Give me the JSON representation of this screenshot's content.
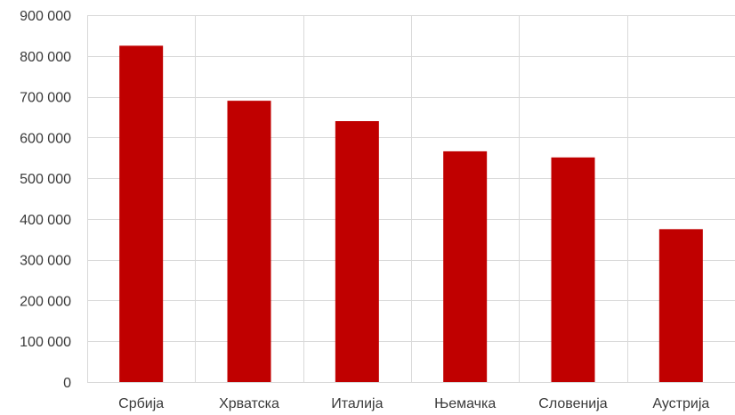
{
  "chart_data": {
    "type": "bar",
    "categories": [
      "Србија",
      "Хрватска",
      "Италија",
      "Њемачка",
      "Словенија",
      "Аустрија"
    ],
    "values": [
      825000,
      690000,
      640000,
      566000,
      551000,
      375000
    ],
    "ylim": [
      0,
      900000
    ],
    "yticks": [
      0,
      100000,
      200000,
      300000,
      400000,
      500000,
      600000,
      700000,
      800000,
      900000
    ],
    "ytick_labels": [
      "0",
      "100 000",
      "200 000",
      "300 000",
      "400 000",
      "500 000",
      "600 000",
      "700 000",
      "800 000",
      "900 000"
    ],
    "grid": true,
    "bar_color": "#C00000",
    "grid_color": "#D9D9D9"
  }
}
